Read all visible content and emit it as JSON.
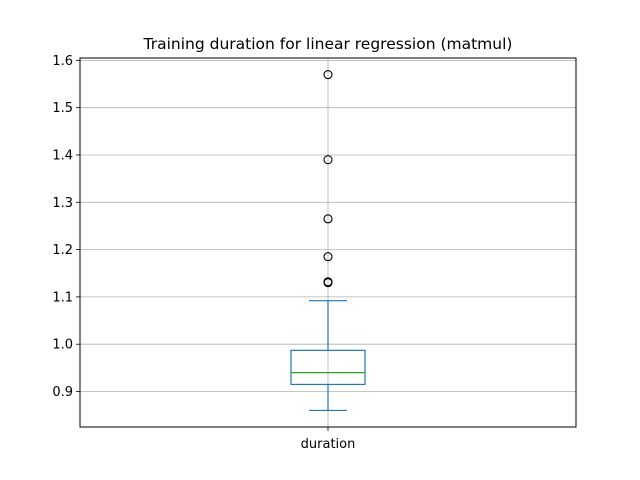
{
  "chart_data": {
    "type": "box",
    "title": "Training duration for linear regression (matmul)",
    "xlabel": "",
    "ylabel": "",
    "categories": [
      "duration"
    ],
    "boxes": [
      {
        "name": "duration",
        "whisker_low": 0.86,
        "q1": 0.915,
        "median": 0.94,
        "q3": 0.987,
        "whisker_high": 1.092,
        "outliers": [
          1.13,
          1.132,
          1.185,
          1.265,
          1.39,
          1.57
        ]
      }
    ],
    "yticks": [
      "0.9",
      "1.0",
      "1.1",
      "1.2",
      "1.3",
      "1.4",
      "1.5",
      "1.6"
    ],
    "ylim": [
      0.825,
      1.605
    ],
    "grid": true,
    "colors": {
      "box": "#1f77b4",
      "median": "#2ca02c",
      "grid": "#b0b0b0",
      "outlier_edge": "#000000"
    }
  }
}
